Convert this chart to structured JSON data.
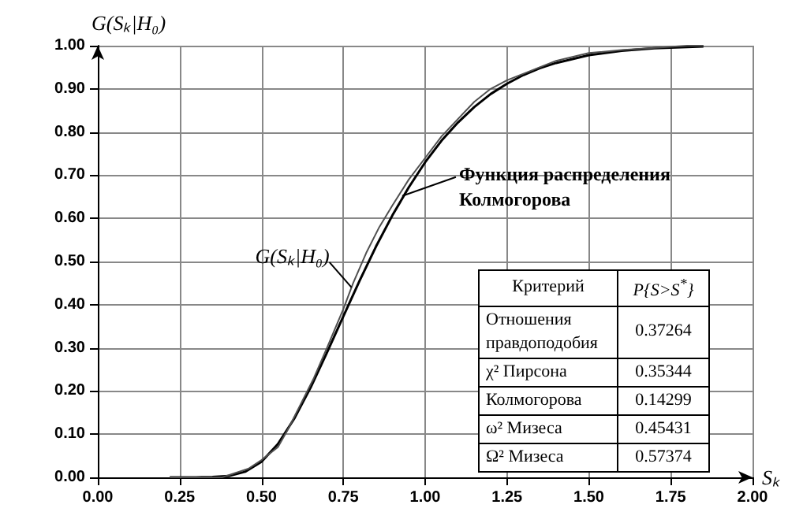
{
  "chart_data": {
    "type": "line",
    "xlabel": "Sₖ",
    "ylabel": "G(Sₖ|H₀)",
    "series": [
      {
        "color": "#000000",
        "x": [
          0.22,
          0.3,
          0.35,
          0.4,
          0.45,
          0.5,
          0.55,
          0.6,
          0.65,
          0.7,
          0.75,
          0.8,
          0.85,
          0.9,
          0.95,
          1.0,
          1.05,
          1.1,
          1.15,
          1.2,
          1.25,
          1.3,
          1.35,
          1.4,
          1.5,
          1.6,
          1.7,
          1.8,
          1.85
        ],
        "values": [
          0,
          0,
          0.001,
          0.003,
          0.013,
          0.036,
          0.077,
          0.136,
          0.208,
          0.289,
          0.373,
          0.456,
          0.535,
          0.607,
          0.672,
          0.73,
          0.78,
          0.822,
          0.858,
          0.888,
          0.912,
          0.932,
          0.948,
          0.96,
          0.978,
          0.988,
          0.994,
          0.997,
          0.998
        ]
      },
      {
        "color": "#505050",
        "x": [
          0.22,
          0.38,
          0.42,
          0.46,
          0.5,
          0.55,
          0.58,
          0.62,
          0.66,
          0.7,
          0.75,
          0.78,
          0.82,
          0.86,
          0.9,
          0.95,
          1.0,
          1.05,
          1.1,
          1.15,
          1.2,
          1.25,
          1.3,
          1.35,
          1.4,
          1.5,
          1.6,
          1.7,
          1.8,
          1.85
        ],
        "values": [
          0,
          0,
          0.01,
          0.02,
          0.04,
          0.07,
          0.11,
          0.17,
          0.23,
          0.3,
          0.39,
          0.45,
          0.52,
          0.58,
          0.63,
          0.69,
          0.74,
          0.79,
          0.83,
          0.87,
          0.9,
          0.92,
          0.935,
          0.95,
          0.965,
          0.983,
          0.99,
          0.995,
          1.0,
          1.0
        ]
      }
    ],
    "xlim": [
      0,
      2
    ],
    "ylim": [
      0,
      1
    ],
    "xticks": [
      {
        "value": 0,
        "label": "0.00"
      },
      {
        "value": 0.25,
        "label": "0.25"
      },
      {
        "value": 0.5,
        "label": "0.50"
      },
      {
        "value": 0.75,
        "label": "0.75"
      },
      {
        "value": 1,
        "label": "1.00"
      },
      {
        "value": 1.25,
        "label": "1.25"
      },
      {
        "value": 1.5,
        "label": "1.50"
      },
      {
        "value": 1.75,
        "label": "1.75"
      },
      {
        "value": 2,
        "label": "2.00"
      }
    ],
    "yticks": [
      {
        "value": 0,
        "label": "0.00"
      },
      {
        "value": 0.1,
        "label": "0.10"
      },
      {
        "value": 0.2,
        "label": "0.20"
      },
      {
        "value": 0.3,
        "label": "0.30"
      },
      {
        "value": 0.4,
        "label": "0.40"
      },
      {
        "value": 0.5,
        "label": "0.50"
      },
      {
        "value": 0.6,
        "label": "0.60"
      },
      {
        "value": 0.7,
        "label": "0.70"
      },
      {
        "value": 0.8,
        "label": "0.80"
      },
      {
        "value": 0.9,
        "label": "0.90"
      },
      {
        "value": 1,
        "label": "1.00"
      }
    ],
    "grid": true,
    "marker": "none",
    "line_style": "solid",
    "annotations": [
      {
        "text": "Функция распределения\nКолмогорова",
        "x": 0.93,
        "y": 0.652
      },
      {
        "text": "G(Sₖ|H₀)",
        "x": 0.775,
        "y": 0.44
      },
      "Критерий",
      "P{S>S$^{*}$}",
      "Отношения\nправдоподобия",
      "0.37264",
      "χ² Пирсона",
      "0.35344",
      "Колмогорова",
      "0.14299",
      "ω² Мизеса",
      "0.45431",
      "Ω² Мизеса",
      "0.57374"
    ]
  }
}
